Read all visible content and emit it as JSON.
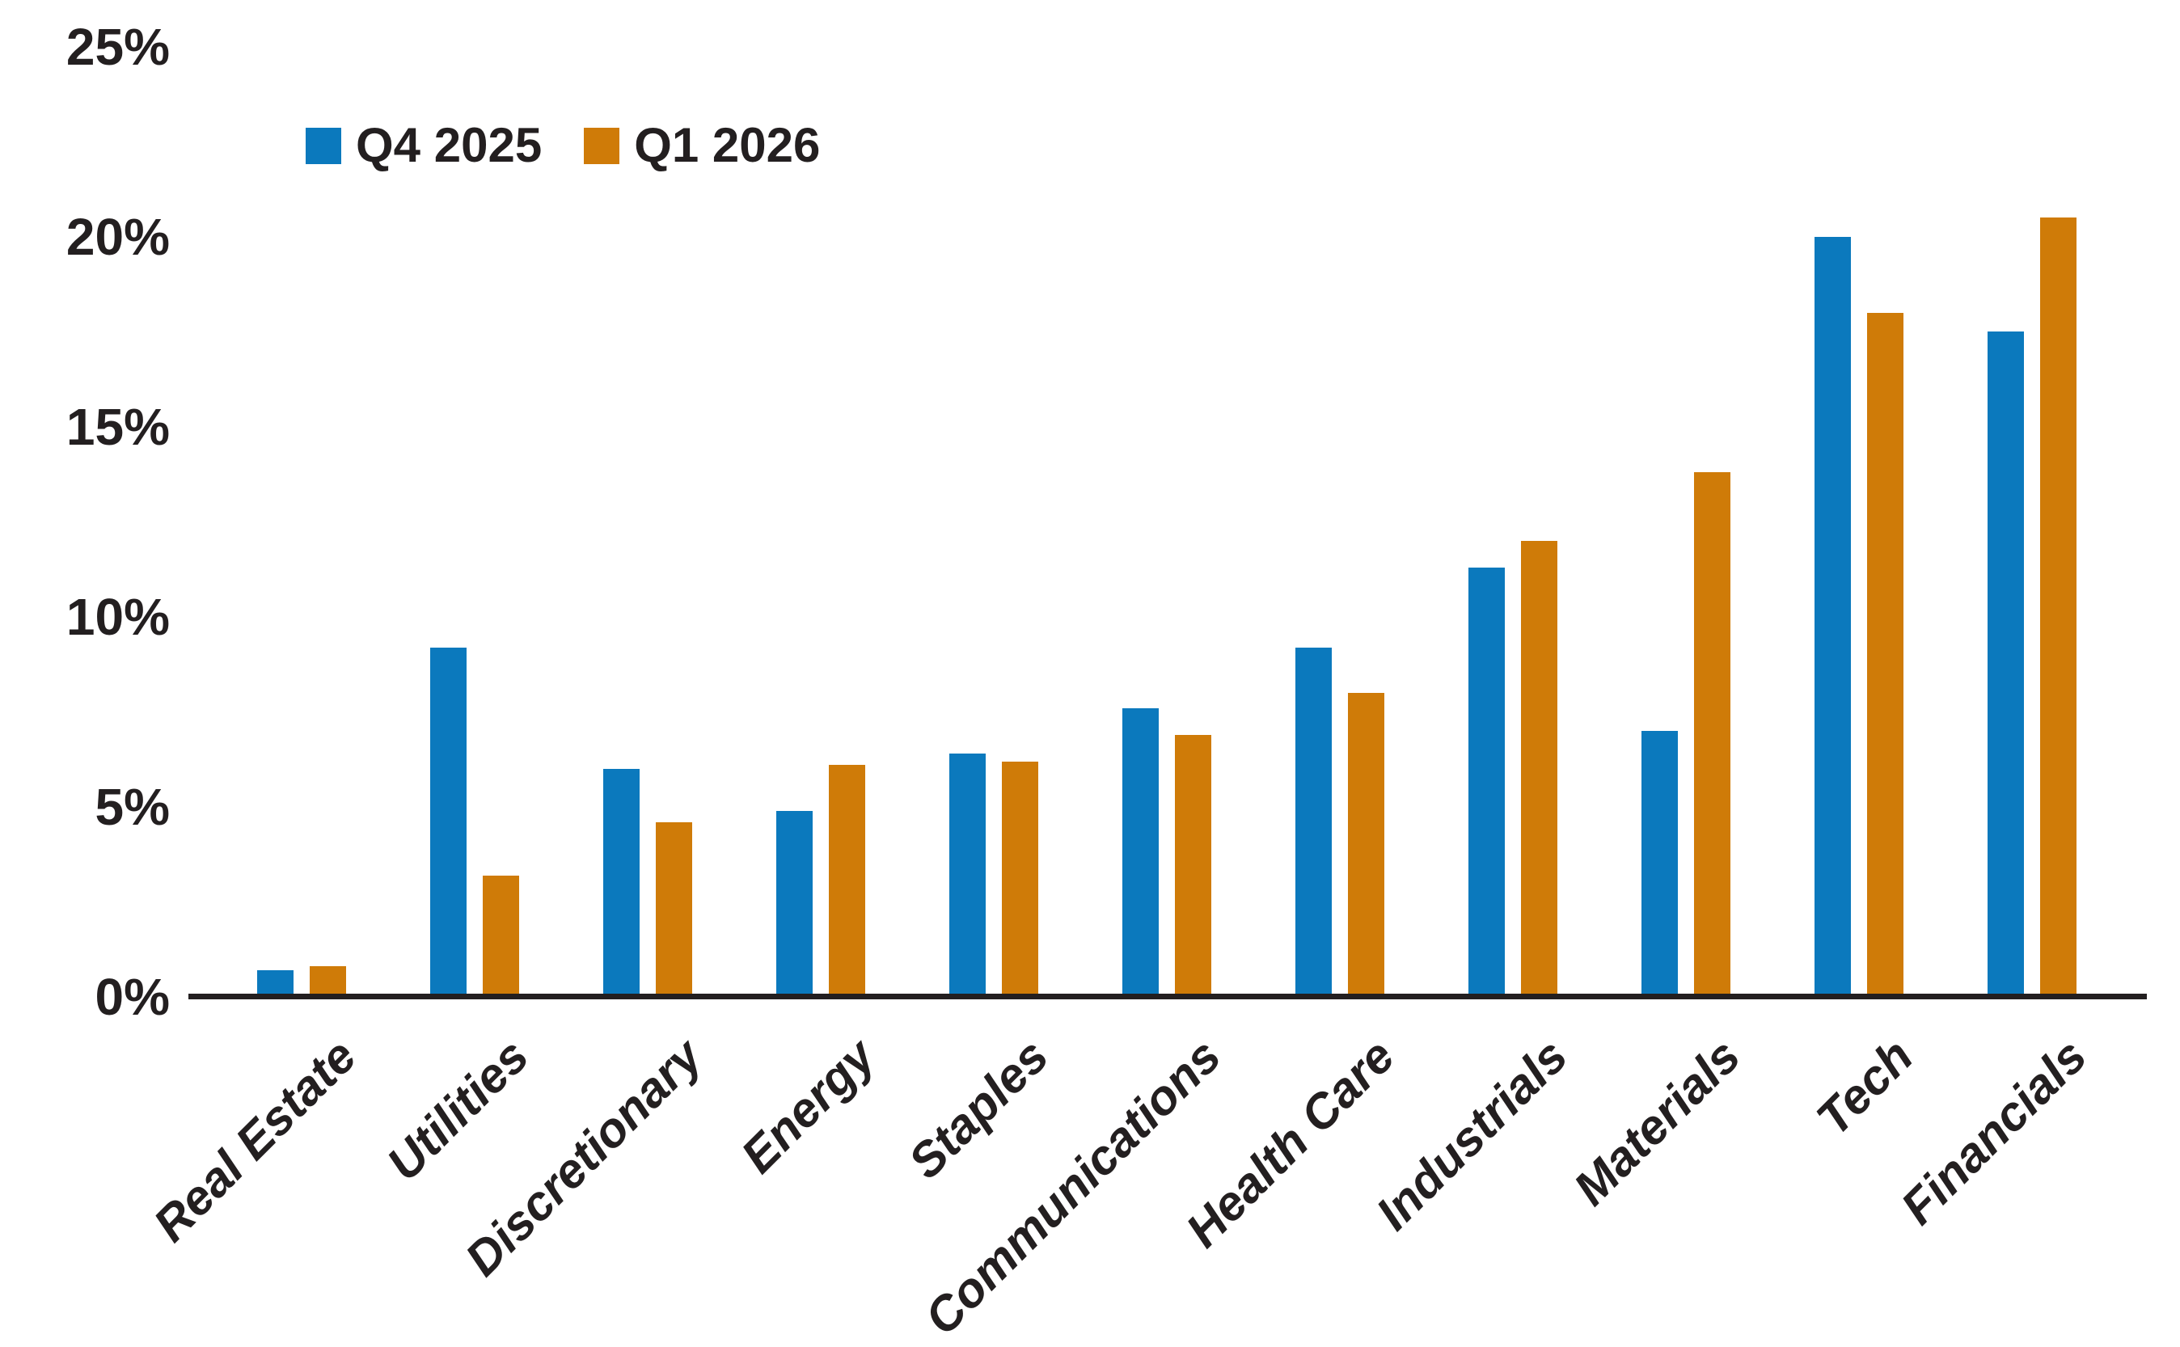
{
  "chart_data": {
    "type": "bar",
    "title": "",
    "categories": [
      "Real Estate",
      "Utilities",
      "Discretionary",
      "Energy",
      "Staples",
      "Communications",
      "Health Care",
      "Industrials",
      "Materials",
      "Tech",
      "Financials"
    ],
    "series": [
      {
        "name": "Q4 2025",
        "color": "#0b79bd",
        "values": [
          0.7,
          9.2,
          6.0,
          4.9,
          6.4,
          7.6,
          9.2,
          11.3,
          7.0,
          20.0,
          17.5
        ]
      },
      {
        "name": "Q1 2026",
        "color": "#cf7b08",
        "values": [
          0.8,
          3.2,
          4.6,
          6.1,
          6.2,
          6.9,
          8.0,
          12.0,
          13.8,
          18.0,
          20.5
        ]
      }
    ],
    "y_axis": {
      "unit": "%",
      "min": 0,
      "max": 25,
      "tick_values": [
        0,
        5,
        10,
        15,
        20,
        25
      ],
      "tick_labels": [
        "0%",
        "5%",
        "10%",
        "15%",
        "20%",
        "25%"
      ]
    },
    "xlabel": "",
    "ylabel": "",
    "grid": false,
    "legend_position": "top-left"
  },
  "colors": {
    "background": "#ffffff",
    "text": "#231f20",
    "axis": "#231f20",
    "series_blue": "#0b79bd",
    "series_orange": "#cf7b08"
  }
}
